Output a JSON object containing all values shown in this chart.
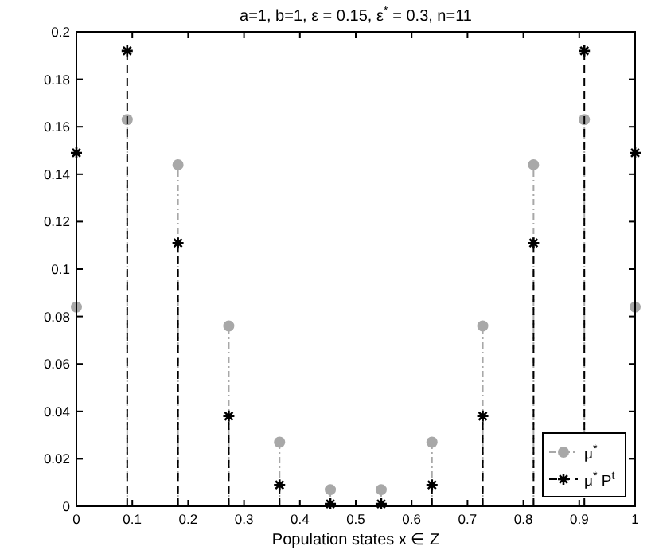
{
  "chart_data": {
    "type": "lollipop",
    "title": "a=1, b=1, ε = 0.15, ε$^{*}$ = 0.3, n=11",
    "xlabel": "Population states x ∈ Z",
    "x": [
      0,
      0.0909,
      0.1818,
      0.2727,
      0.3636,
      0.4545,
      0.5455,
      0.6364,
      0.7273,
      0.8182,
      0.9091,
      1
    ],
    "series": [
      {
        "name": "μ$^{*}$",
        "color": "#a8a8a8",
        "marker": "circle",
        "line_style": "dotted",
        "values": [
          0.084,
          0.163,
          0.144,
          0.076,
          0.027,
          0.007,
          0.007,
          0.027,
          0.076,
          0.144,
          0.163,
          0.084
        ]
      },
      {
        "name": "μ$^{*}$ P$^{t}$",
        "color": "#000000",
        "marker": "cross",
        "line_style": "dashed",
        "values": [
          0.149,
          0.192,
          0.111,
          0.038,
          0.009,
          0.001,
          0.001,
          0.009,
          0.038,
          0.111,
          0.192,
          0.149
        ]
      }
    ],
    "xlim": [
      0,
      1
    ],
    "xticks": [
      0,
      0.1,
      0.2,
      0.3,
      0.4,
      0.5,
      0.6,
      0.7,
      0.8,
      0.9,
      1
    ],
    "ylim": [
      0,
      0.2
    ],
    "yticks": [
      0,
      0.02,
      0.04,
      0.06,
      0.08,
      0.1,
      0.12,
      0.14,
      0.16,
      0.18,
      0.2
    ],
    "grid": false,
    "legend": "bottom right"
  }
}
